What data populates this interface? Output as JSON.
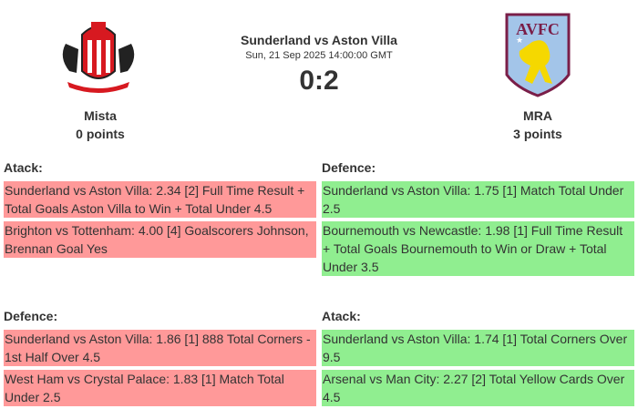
{
  "match": {
    "title": "Sunderland vs Aston Villa",
    "date": "Sun, 21 Sep 2025 14:00:00 GMT",
    "score": "0:2"
  },
  "home": {
    "logo": "sunderland-afc-crest",
    "logo_text": "SUNDERLAND A.F.C.",
    "player": "Mista",
    "points": "0 points"
  },
  "away": {
    "logo": "aston-villa-crest",
    "logo_text": "AVFC",
    "player": "MRA",
    "points": "3 points"
  },
  "colors": {
    "lose": "#ff9999",
    "win": "#90ee90"
  },
  "sections": [
    {
      "heading": "Atack:",
      "bets": [
        {
          "text": "Sunderland vs Aston Villa: 2.34 [2] Full Time Result + Total Goals Aston Villa to Win + Total Under 4.5",
          "status": "lost"
        },
        {
          "text": "Brighton vs Tottenham: 4.00 [4] Goalscorers Johnson, Brennan Goal Yes",
          "status": "lost"
        }
      ]
    },
    {
      "heading": "Defence:",
      "bets": [
        {
          "text": "Sunderland vs Aston Villa: 1.75 [1] Match Total Under 2.5",
          "status": "won"
        },
        {
          "text": "Bournemouth vs Newcastle: 1.98 [1] Full Time Result + Total Goals Bournemouth to Win or Draw + Total Under 3.5",
          "status": "won"
        }
      ]
    },
    {
      "heading": "Defence:",
      "bets": [
        {
          "text": "Sunderland vs Aston Villa: 1.86 [1] 888 Total Corners - 1st Half Over 4.5",
          "status": "lost"
        },
        {
          "text": "West Ham vs Crystal Palace: 1.83 [1] Match Total Under 2.5",
          "status": "lost"
        }
      ]
    },
    {
      "heading": "Atack:",
      "bets": [
        {
          "text": "Sunderland vs Aston Villa: 1.74 [1] Total Corners Over 9.5",
          "status": "won"
        },
        {
          "text": "Arsenal vs Man City: 2.27 [2] Total Yellow Cards Over 4.5",
          "status": "won"
        }
      ]
    }
  ]
}
